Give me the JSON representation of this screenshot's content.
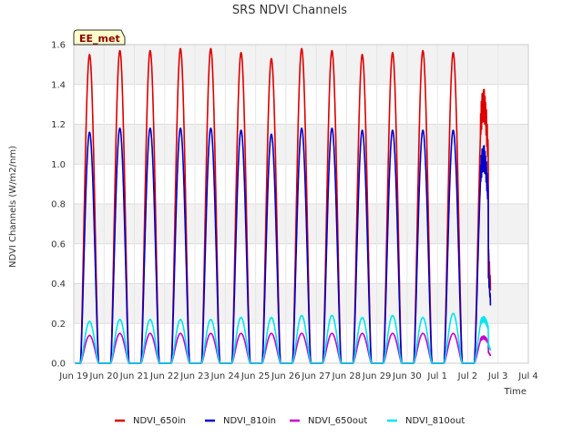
{
  "chart_data": {
    "type": "line",
    "title": "SRS NDVI Channels",
    "xlabel": "Time",
    "ylabel": "NDVI Channels (W/m2/nm)",
    "badge": "EE_met",
    "ylim": [
      0,
      1.6
    ],
    "yticks": [
      0.0,
      0.2,
      0.4,
      0.6,
      0.8,
      1.0,
      1.2,
      1.4,
      1.6
    ],
    "ytick_labels": [
      "0.0",
      "0.2",
      "0.4",
      "0.6",
      "0.8",
      "1.0",
      "1.2",
      "1.4",
      "1.6"
    ],
    "xlim": [
      0,
      15
    ],
    "xticks": [
      0,
      1,
      2,
      3,
      4,
      5,
      6,
      7,
      8,
      9,
      10,
      11,
      12,
      13,
      14,
      15
    ],
    "xtick_labels": [
      "Jun 19",
      "Jun 20",
      "Jun 21",
      "Jun 22",
      "Jun 23",
      "Jun 24",
      "Jun 25",
      "Jun 26",
      "Jun 27",
      "Jun 28",
      "Jun 29",
      "Jun 30",
      "Jul 1",
      "Jul 2",
      "Jul 3",
      "Jul 4"
    ],
    "grid": true,
    "legend_position": "bottom",
    "x_day_peaks": [
      "Jun 19",
      "Jun 20",
      "Jun 21",
      "Jun 22",
      "Jun 23",
      "Jun 24",
      "Jun 25",
      "Jun 26",
      "Jun 27",
      "Jun 28",
      "Jun 29",
      "Jun 30",
      "Jul 1",
      "Jul 2"
    ],
    "series": [
      {
        "name": "NDVI_650in",
        "color": "#dd0000",
        "daily_peaks": [
          1.55,
          1.57,
          1.57,
          1.58,
          1.58,
          1.56,
          1.53,
          1.58,
          1.57,
          1.55,
          1.56,
          1.57,
          1.56,
          1.41
        ]
      },
      {
        "name": "NDVI_810in",
        "color": "#0000cc",
        "daily_peaks": [
          1.16,
          1.18,
          1.18,
          1.18,
          1.18,
          1.17,
          1.15,
          1.18,
          1.18,
          1.17,
          1.17,
          1.17,
          1.17,
          1.12
        ]
      },
      {
        "name": "NDVI_650out",
        "color": "#cc00cc",
        "daily_peaks": [
          0.14,
          0.15,
          0.15,
          0.15,
          0.15,
          0.15,
          0.15,
          0.15,
          0.15,
          0.15,
          0.15,
          0.15,
          0.15,
          0.14
        ]
      },
      {
        "name": "NDVI_810out",
        "color": "#00e5ee",
        "daily_peaks": [
          0.21,
          0.22,
          0.22,
          0.22,
          0.22,
          0.23,
          0.23,
          0.24,
          0.24,
          0.23,
          0.24,
          0.23,
          0.25,
          0.24
        ]
      }
    ]
  }
}
